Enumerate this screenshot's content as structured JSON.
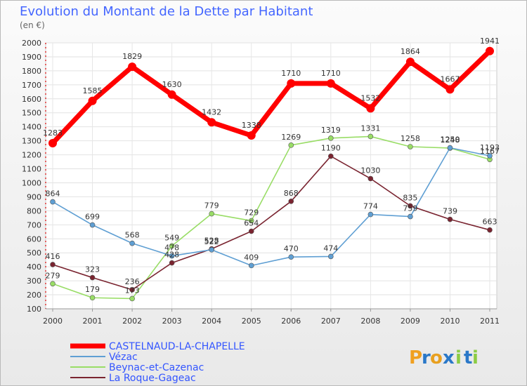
{
  "chart_data": {
    "type": "line",
    "title": "Evolution du Montant de la Dette par Habitant",
    "subtitle": "(en €)",
    "xlabel": "",
    "ylabel": "",
    "categories": [
      "2000",
      "2001",
      "2002",
      "2003",
      "2004",
      "2005",
      "2006",
      "2007",
      "2008",
      "2009",
      "2010",
      "2011"
    ],
    "ylim": [
      100,
      2000
    ],
    "yticks": [
      100,
      200,
      300,
      400,
      500,
      600,
      700,
      800,
      900,
      1000,
      1100,
      1200,
      1300,
      1400,
      1500,
      1600,
      1700,
      1800,
      1900,
      2000
    ],
    "grid": true,
    "legend_position": "bottom-left",
    "series": [
      {
        "name": "CASTELNAUD-LA-CHAPELLE",
        "color": "#ff0000",
        "values": [
          1283,
          1585,
          1829,
          1630,
          1432,
          1338,
          1710,
          1710,
          1532,
          1864,
          1667,
          1941
        ],
        "labels": [
          "1283",
          "1585",
          "1829",
          "1630",
          "1432",
          "1338",
          "1710",
          "1710",
          "1532",
          "1864",
          "1667",
          "1941"
        ]
      },
      {
        "name": "Vézac",
        "color": "#5f9fd3",
        "values": [
          864,
          699,
          568,
          478,
          522,
          409,
          470,
          474,
          774,
          759,
          1250,
          1193
        ],
        "labels": [
          "864",
          "699",
          "568",
          "478",
          "522",
          "409",
          "470",
          "474",
          "774",
          "759",
          "1250",
          "1193"
        ]
      },
      {
        "name": "Beynac-et-Cazenac",
        "color": "#99dd66",
        "values": [
          279,
          179,
          173,
          549,
          779,
          729,
          1269,
          1319,
          1331,
          1258,
          1248,
          1167
        ],
        "labels": [
          "279",
          "179",
          "173",
          "549",
          "779",
          "729",
          "1269",
          "1319",
          "1331",
          "1258",
          "1248",
          "1167"
        ]
      },
      {
        "name": "La Roque-Gageac",
        "color": "#7a2430",
        "values": [
          416,
          323,
          236,
          428,
          528,
          654,
          868,
          1190,
          1030,
          835,
          739,
          663
        ],
        "labels": [
          "416",
          "323",
          "236",
          "428",
          "528",
          "654",
          "868",
          "1190",
          "1030",
          "835",
          "739",
          "663"
        ]
      }
    ]
  },
  "brand": {
    "logo_letters": [
      "P",
      "r",
      "o",
      "x",
      "i",
      "t",
      "i"
    ],
    "logo_colors": [
      "#f0a020",
      "#2a78c8",
      "#e8a020",
      "#2a78c8",
      "#8ccc44",
      "#2a78c8",
      "#8ccc44"
    ]
  }
}
